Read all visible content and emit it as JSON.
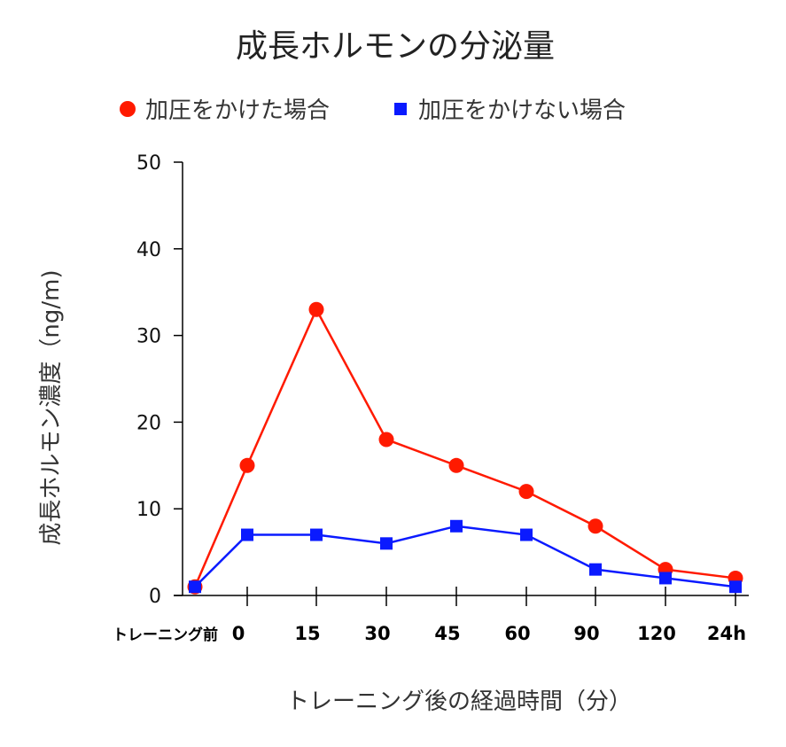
{
  "chart_data": {
    "type": "line",
    "title": "成長ホルモンの分泌量",
    "xlabel": "トレーニング後の経過時間（分）",
    "ylabel": "成長ホルモン濃度（ng/m)",
    "categories": [
      "トレーニング前",
      "0",
      "15",
      "30",
      "45",
      "60",
      "90",
      "120",
      "24h"
    ],
    "ylim": [
      0,
      50
    ],
    "yticks": [
      "0",
      "10",
      "20",
      "30",
      "40",
      "50"
    ],
    "grid": false,
    "legend_position": "top",
    "series": [
      {
        "name": "加圧をかけた場合",
        "color": "#ff1a00",
        "marker": "circle",
        "values": [
          1,
          15,
          33,
          18,
          15,
          12,
          8,
          3,
          2
        ]
      },
      {
        "name": "加圧をかけない場合",
        "color": "#0a1aff",
        "marker": "square",
        "values": [
          1,
          7,
          7,
          6,
          8,
          7,
          3,
          2,
          1
        ]
      }
    ]
  }
}
